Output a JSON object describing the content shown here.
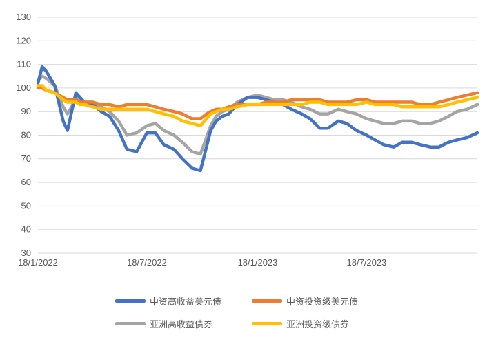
{
  "chart_data": {
    "type": "line",
    "title": "",
    "xlabel": "",
    "ylabel": "",
    "ylim": [
      30,
      130
    ],
    "yticks": [
      30,
      40,
      50,
      60,
      70,
      80,
      90,
      100,
      110,
      120,
      130
    ],
    "xticks": [
      "18/1/2022",
      "18/7/2022",
      "18/1/2023",
      "18/7/2023"
    ],
    "xlim": [
      "2022-01-18",
      "2024-01-18"
    ],
    "grid": "horizontal",
    "legend_position": "bottom",
    "x": [
      "2022-01-18",
      "2022-01-25",
      "2022-02-01",
      "2022-02-15",
      "2022-03-01",
      "2022-03-08",
      "2022-03-15",
      "2022-03-22",
      "2022-03-29",
      "2022-04-05",
      "2022-04-19",
      "2022-05-03",
      "2022-05-17",
      "2022-06-01",
      "2022-06-15",
      "2022-07-01",
      "2022-07-18",
      "2022-08-01",
      "2022-08-15",
      "2022-09-01",
      "2022-09-15",
      "2022-10-01",
      "2022-10-15",
      "2022-10-25",
      "2022-11-01",
      "2022-11-10",
      "2022-11-20",
      "2022-12-01",
      "2022-12-15",
      "2023-01-01",
      "2023-01-18",
      "2023-02-01",
      "2023-02-15",
      "2023-03-01",
      "2023-03-15",
      "2023-04-01",
      "2023-04-15",
      "2023-05-01",
      "2023-05-15",
      "2023-06-01",
      "2023-06-15",
      "2023-07-01",
      "2023-07-18",
      "2023-08-01",
      "2023-08-15",
      "2023-09-01",
      "2023-09-15",
      "2023-10-01",
      "2023-10-15",
      "2023-11-01",
      "2023-11-15",
      "2023-12-01",
      "2023-12-15",
      "2024-01-01",
      "2024-01-18"
    ],
    "series": [
      {
        "name": "中资高收益美元债",
        "color": "#4472C4",
        "values": [
          102,
          109,
          107,
          101,
          86,
          82,
          90,
          98,
          96,
          94,
          93,
          90,
          88,
          82,
          74,
          73,
          81,
          81,
          76,
          74,
          70,
          66,
          65,
          75,
          82,
          86,
          88,
          89,
          93,
          96,
          96,
          95,
          94,
          93,
          91,
          89,
          87,
          83,
          83,
          86,
          85,
          82,
          80,
          78,
          76,
          75,
          77,
          77,
          76,
          75,
          75,
          77,
          78,
          79,
          81
        ]
      },
      {
        "name": "中资投资级美元债",
        "color": "#ED7D31",
        "values": [
          100,
          100,
          99,
          98,
          96,
          95,
          95,
          95,
          94,
          94,
          94,
          93,
          93,
          92,
          93,
          93,
          93,
          92,
          91,
          90,
          89,
          87,
          87,
          89,
          90,
          91,
          91,
          92,
          93,
          93,
          93,
          94,
          94,
          94,
          95,
          95,
          95,
          95,
          94,
          94,
          94,
          95,
          95,
          94,
          94,
          94,
          94,
          94,
          93,
          93,
          94,
          95,
          96,
          97,
          98
        ]
      },
      {
        "name": "亚洲高收益债券",
        "color": "#A5A5A5",
        "values": [
          103,
          105,
          104,
          101,
          92,
          89,
          92,
          97,
          95,
          94,
          94,
          92,
          90,
          86,
          80,
          81,
          84,
          85,
          82,
          80,
          77,
          73,
          72,
          79,
          84,
          88,
          90,
          91,
          94,
          96,
          97,
          96,
          95,
          95,
          94,
          92,
          91,
          89,
          89,
          91,
          90,
          89,
          87,
          86,
          85,
          85,
          86,
          86,
          85,
          85,
          86,
          88,
          90,
          91,
          93
        ]
      },
      {
        "name": "亚洲投资级债券",
        "color": "#FFC000",
        "values": [
          101,
          101,
          99,
          98,
          95,
          94,
          94,
          94,
          93,
          93,
          92,
          91,
          91,
          91,
          91,
          91,
          91,
          90,
          89,
          88,
          86,
          85,
          84,
          87,
          89,
          90,
          91,
          91,
          92,
          93,
          93,
          93,
          93,
          93,
          93,
          93,
          94,
          94,
          93,
          93,
          93,
          93,
          94,
          93,
          93,
          93,
          92,
          92,
          92,
          92,
          92,
          93,
          94,
          95,
          96
        ]
      }
    ]
  }
}
